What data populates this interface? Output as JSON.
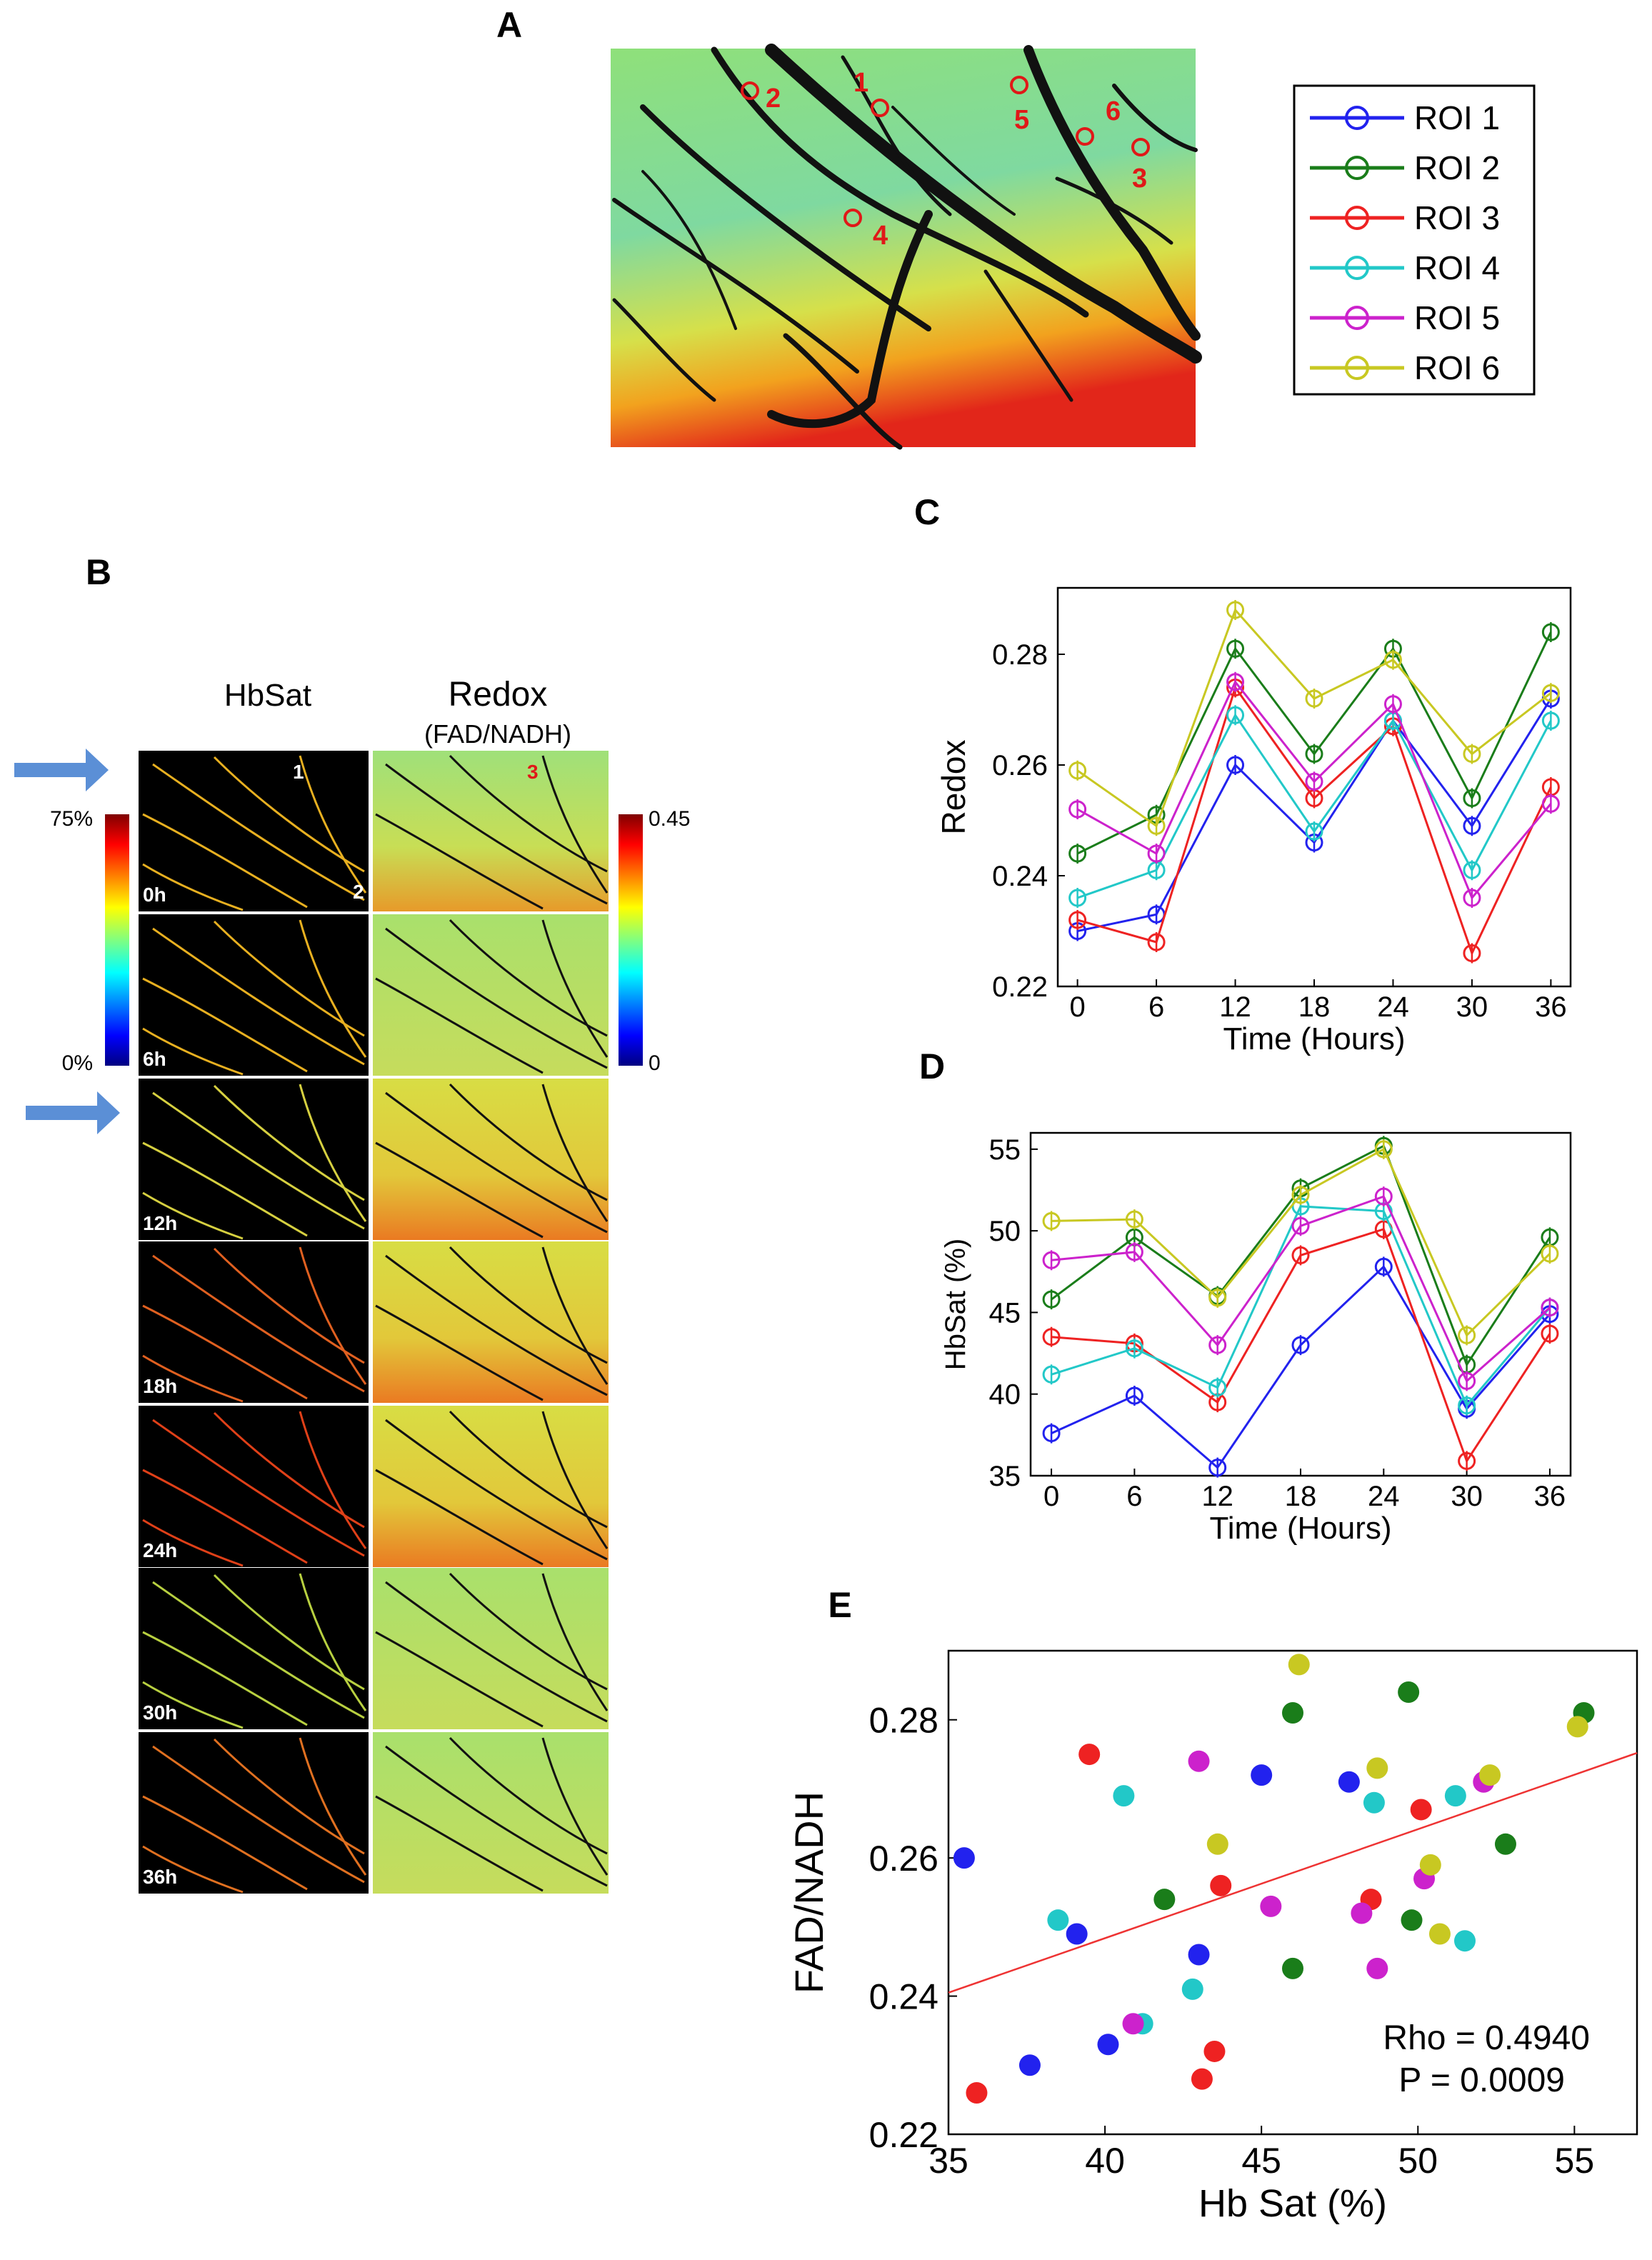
{
  "panels": {
    "A": "A",
    "B": "B",
    "C": "C",
    "D": "D",
    "E": "E"
  },
  "colors": {
    "roi1": "#2222ee",
    "roi2": "#1a7d1a",
    "roi3": "#ee2222",
    "roi4": "#22c8c8",
    "roi5": "#cc22cc",
    "roi6": "#c8c822",
    "fit_line": "#ee3333"
  },
  "roi_map": {
    "labels": [
      "1",
      "2",
      "3",
      "4",
      "5",
      "6"
    ]
  },
  "legend": {
    "entries": [
      "ROI 1",
      "ROI 2",
      "ROI 3",
      "ROI 4",
      "ROI 5",
      "ROI 6"
    ]
  },
  "montage": {
    "col_hbsat": "HbSat",
    "col_redox": "Redox",
    "col_redox_sub": "(FAD/NADH)",
    "rows": [
      "0h",
      "6h",
      "12h",
      "18h",
      "24h",
      "30h",
      "36h"
    ],
    "hbsat_cbar_max": "75%",
    "hbsat_cbar_min": "0%",
    "redox_cbar_max": "0.45",
    "redox_cbar_min": "0",
    "roi_marks": [
      "1",
      "2",
      "3"
    ]
  },
  "chart_data": [
    {
      "panel": "C",
      "type": "line",
      "x": [
        0,
        6,
        12,
        18,
        24,
        30,
        36
      ],
      "xticks": [
        "0",
        "6",
        "12",
        "18",
        "24",
        "30",
        "36"
      ],
      "xlabel": "Time (Hours)",
      "ylabel": "Redox",
      "ylim": [
        0.22,
        0.292
      ],
      "yticks": [
        "0.22",
        "0.24",
        "0.26",
        "0.28"
      ],
      "series": [
        {
          "name": "ROI 1",
          "values": [
            0.23,
            0.233,
            0.26,
            0.246,
            0.268,
            0.249,
            0.272
          ]
        },
        {
          "name": "ROI 2",
          "values": [
            0.244,
            0.251,
            0.281,
            0.262,
            0.281,
            0.254,
            0.284
          ]
        },
        {
          "name": "ROI 3",
          "values": [
            0.232,
            0.228,
            0.274,
            0.254,
            0.267,
            0.226,
            0.256
          ]
        },
        {
          "name": "ROI 4",
          "values": [
            0.236,
            0.241,
            0.269,
            0.248,
            0.268,
            0.241,
            0.268
          ]
        },
        {
          "name": "ROI 5",
          "values": [
            0.252,
            0.244,
            0.275,
            0.257,
            0.271,
            0.236,
            0.253
          ]
        },
        {
          "name": "ROI 6",
          "values": [
            0.259,
            0.249,
            0.288,
            0.272,
            0.279,
            0.262,
            0.273
          ]
        }
      ]
    },
    {
      "panel": "D",
      "type": "line",
      "x": [
        0,
        6,
        12,
        18,
        24,
        30,
        36
      ],
      "xticks": [
        "0",
        "6",
        "12",
        "18",
        "24",
        "30",
        "36"
      ],
      "xlabel": "Time (Hours)",
      "ylabel": "HbSat (%)",
      "ylim": [
        35,
        56
      ],
      "yticks": [
        "35",
        "40",
        "45",
        "50",
        "55"
      ],
      "series": [
        {
          "name": "ROI 1",
          "values": [
            37.6,
            39.9,
            35.5,
            43.0,
            47.8,
            39.1,
            44.9
          ]
        },
        {
          "name": "ROI 2",
          "values": [
            45.8,
            49.6,
            46.0,
            52.6,
            55.2,
            41.8,
            49.6
          ]
        },
        {
          "name": "ROI 3",
          "values": [
            43.5,
            43.1,
            39.5,
            48.5,
            50.1,
            35.9,
            43.7
          ]
        },
        {
          "name": "ROI 4",
          "values": [
            41.2,
            42.8,
            40.4,
            51.5,
            51.2,
            39.3,
            45.3
          ]
        },
        {
          "name": "ROI 5",
          "values": [
            48.2,
            48.7,
            43.0,
            50.3,
            52.1,
            40.8,
            45.3
          ]
        },
        {
          "name": "ROI 6",
          "values": [
            50.6,
            50.7,
            45.9,
            52.2,
            55.0,
            43.6,
            48.6
          ]
        }
      ]
    },
    {
      "panel": "E",
      "type": "scatter",
      "xlabel": "Hb Sat (%)",
      "ylabel": "FAD/NADH",
      "xlim": [
        35,
        57
      ],
      "ylim": [
        0.22,
        0.29
      ],
      "xticks": [
        "35",
        "40",
        "45",
        "50",
        "55"
      ],
      "yticks": [
        "0.22",
        "0.24",
        "0.26",
        "0.28"
      ],
      "annotation_rho": "Rho = 0.4940",
      "annotation_p": "P = 0.0009",
      "fit": {
        "x": [
          35,
          57
        ],
        "y": [
          0.2405,
          0.2752
        ]
      },
      "series": [
        {
          "name": "ROI 1",
          "points": [
            [
              35.5,
              0.26
            ],
            [
              37.6,
              0.23
            ],
            [
              39.1,
              0.249
            ],
            [
              40.1,
              0.233
            ],
            [
              43.0,
              0.246
            ],
            [
              45.0,
              0.272
            ],
            [
              47.8,
              0.271
            ]
          ]
        },
        {
          "name": "ROI 2",
          "points": [
            [
              41.9,
              0.254
            ],
            [
              46.0,
              0.281
            ],
            [
              46.0,
              0.244
            ],
            [
              49.7,
              0.284
            ],
            [
              49.8,
              0.251
            ],
            [
              52.8,
              0.262
            ],
            [
              55.3,
              0.281
            ]
          ]
        },
        {
          "name": "ROI 3",
          "points": [
            [
              35.9,
              0.226
            ],
            [
              39.5,
              0.275
            ],
            [
              43.1,
              0.228
            ],
            [
              43.5,
              0.232
            ],
            [
              43.7,
              0.256
            ],
            [
              48.5,
              0.254
            ],
            [
              50.1,
              0.267
            ]
          ]
        },
        {
          "name": "ROI 4",
          "points": [
            [
              38.5,
              0.251
            ],
            [
              40.6,
              0.269
            ],
            [
              41.2,
              0.236
            ],
            [
              42.8,
              0.241
            ],
            [
              48.6,
              0.268
            ],
            [
              51.2,
              0.269
            ],
            [
              51.5,
              0.248
            ]
          ]
        },
        {
          "name": "ROI 5",
          "points": [
            [
              40.9,
              0.236
            ],
            [
              43.0,
              0.274
            ],
            [
              45.3,
              0.253
            ],
            [
              48.2,
              0.252
            ],
            [
              48.7,
              0.244
            ],
            [
              50.2,
              0.257
            ],
            [
              52.1,
              0.271
            ]
          ]
        },
        {
          "name": "ROI 6",
          "points": [
            [
              43.6,
              0.262
            ],
            [
              46.2,
              0.288
            ],
            [
              48.7,
              0.273
            ],
            [
              50.4,
              0.259
            ],
            [
              50.7,
              0.249
            ],
            [
              52.3,
              0.272
            ],
            [
              55.1,
              0.279
            ]
          ]
        }
      ]
    }
  ]
}
